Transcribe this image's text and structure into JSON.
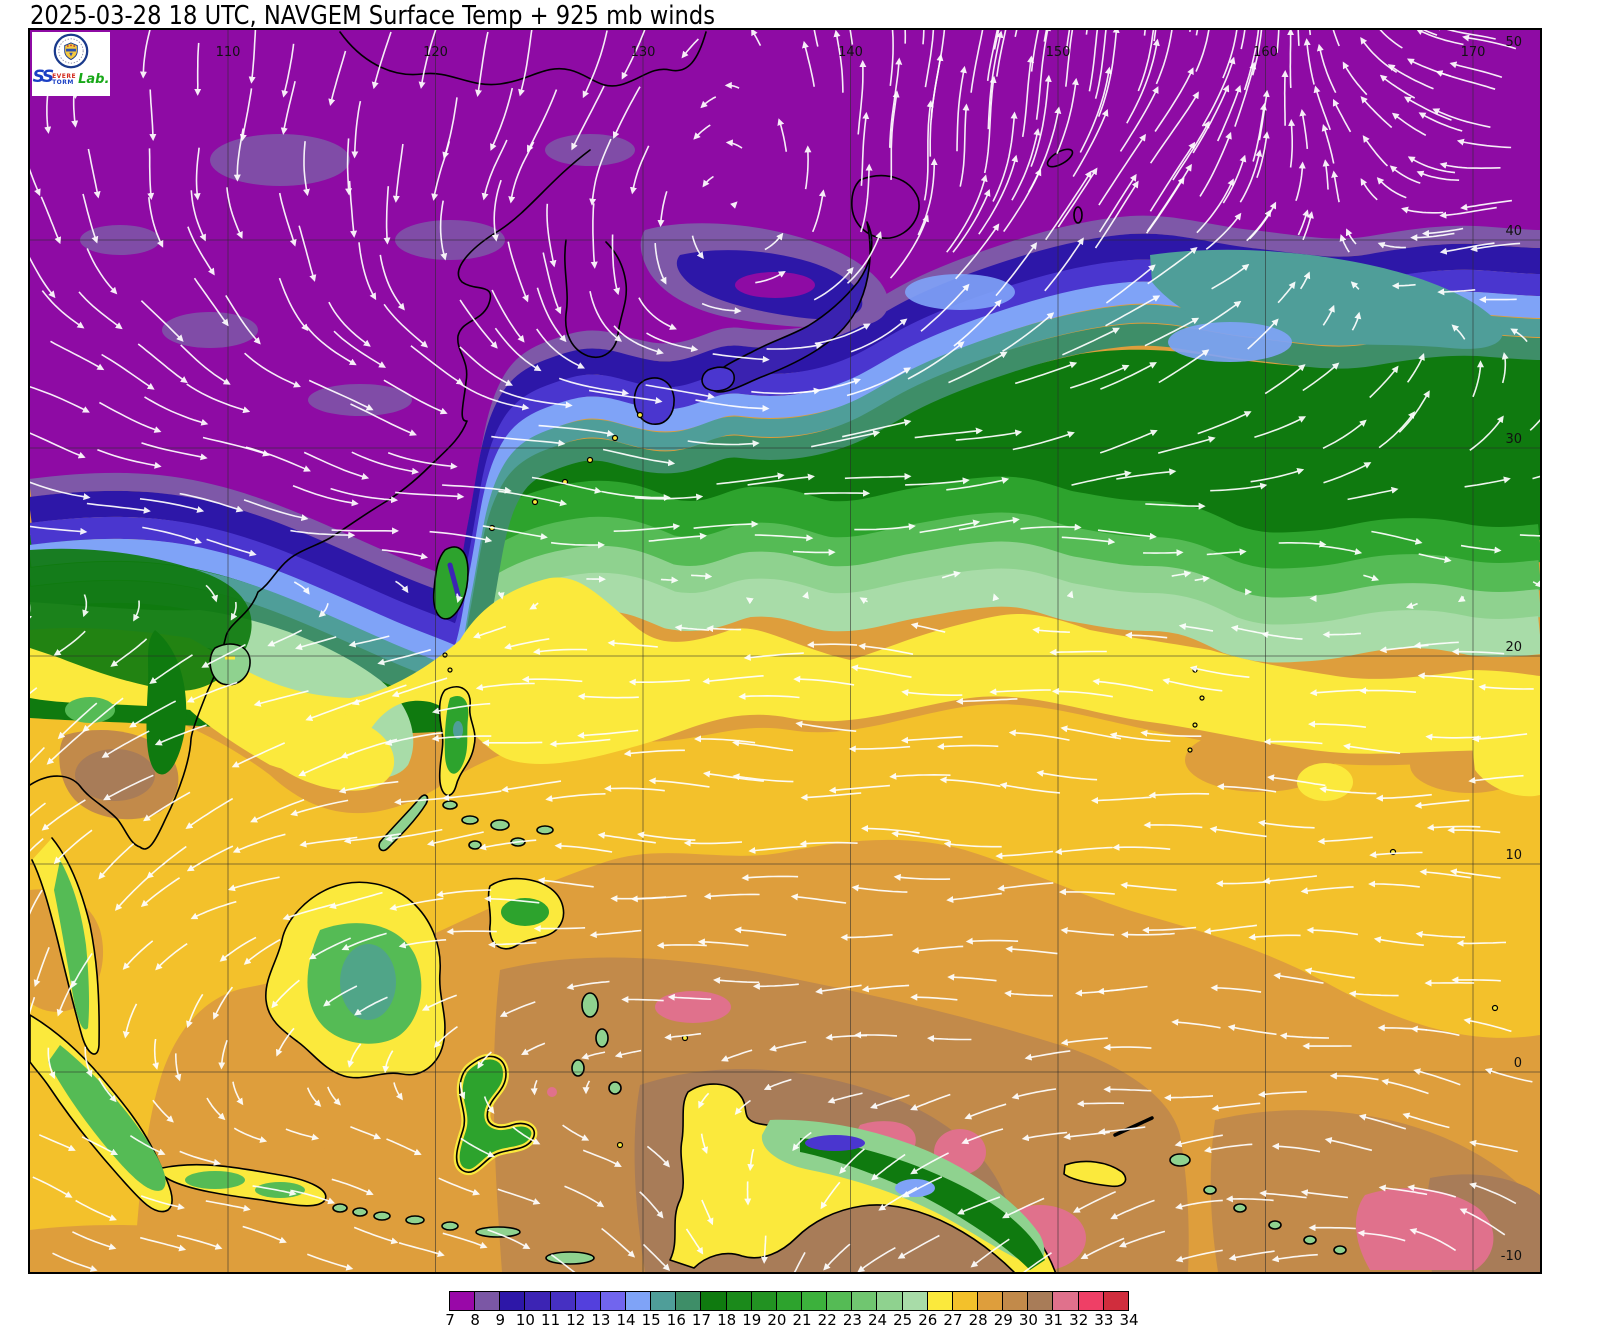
{
  "title": "2025-03-28 18 UTC, NAVGEM Surface Temp + 925 mb winds",
  "logo": {
    "s1": "S",
    "s2": "S",
    "top": "EVERE",
    "bottom": "TORM",
    "lab": "Lab."
  },
  "map": {
    "lon_labels": [
      "110",
      "120",
      "130",
      "140",
      "150",
      "160",
      "170"
    ],
    "lon_values": [
      110,
      120,
      130,
      140,
      150,
      160,
      170
    ],
    "lat_labels": [
      "50",
      "40",
      "30",
      "20",
      "10",
      "0",
      "-10"
    ],
    "lat_values": [
      50,
      40,
      30,
      20,
      10,
      0,
      -10
    ]
  },
  "colorbar": {
    "tick_labels": [
      "7",
      "8",
      "9",
      "10",
      "11",
      "12",
      "13",
      "14",
      "15",
      "16",
      "17",
      "18",
      "19",
      "20",
      "21",
      "22",
      "23",
      "24",
      "25",
      "26",
      "27",
      "28",
      "29",
      "30",
      "31",
      "32",
      "33",
      "34"
    ],
    "colors": [
      "#9908A8",
      "#7B57A5",
      "#2D17A8",
      "#3C24B4",
      "#4630C2",
      "#5340DD",
      "#7165EE",
      "#7FA3F7",
      "#4F9E99",
      "#3E8E68",
      "#0F7A0F",
      "#1B8A1B",
      "#229222",
      "#2DA32D",
      "#3CB13C",
      "#55BB55",
      "#70C670",
      "#8FD28F",
      "#A8DCA8",
      "#FBE93C",
      "#F3C12B",
      "#DE9E3C",
      "#C28A4A",
      "#A87C58",
      "#E0718C",
      "#EF3F66",
      "#D02D3D"
    ]
  },
  "wind": {
    "lats": [
      50,
      44,
      38,
      32,
      26,
      20,
      14,
      8,
      2,
      -4,
      -10
    ],
    "lons": [
      100,
      114,
      128,
      142,
      156,
      170
    ],
    "angles_deg": [
      [
        100,
        100,
        105,
        -90,
        -75,
        -165
      ],
      [
        80,
        95,
        115,
        -88,
        -55,
        -175
      ],
      [
        50,
        65,
        75,
        -55,
        -35,
        165
      ],
      [
        20,
        25,
        10,
        -12,
        -25,
        -60
      ],
      [
        12,
        8,
        2,
        -5,
        2,
        8
      ],
      [
        140,
        162,
        178,
        184,
        186,
        178
      ],
      [
        138,
        162,
        181,
        182,
        184,
        180
      ],
      [
        118,
        168,
        183,
        180,
        178,
        182
      ],
      [
        95,
        125,
        172,
        178,
        182,
        190
      ],
      [
        22,
        12,
        28,
        150,
        172,
        198
      ],
      [
        28,
        16,
        34,
        142,
        155,
        212
      ]
    ],
    "speed": [
      [
        0.8,
        0.9,
        1.2,
        1.5,
        1.3,
        0.9
      ],
      [
        0.8,
        0.9,
        1.2,
        1.5,
        1.2,
        0.9
      ],
      [
        0.9,
        1.0,
        1.1,
        1.2,
        1.0,
        0.8
      ],
      [
        1.1,
        1.2,
        1.3,
        1.2,
        1.0,
        0.9
      ],
      [
        1.0,
        1.1,
        1.1,
        1.0,
        1.0,
        0.9
      ],
      [
        0.8,
        0.9,
        1.0,
        1.0,
        1.0,
        0.9
      ],
      [
        0.9,
        1.0,
        1.0,
        1.0,
        1.0,
        0.9
      ],
      [
        0.8,
        0.9,
        0.9,
        0.9,
        0.9,
        0.8
      ],
      [
        0.6,
        0.6,
        0.6,
        0.7,
        0.8,
        0.8
      ],
      [
        0.7,
        0.7,
        0.7,
        0.7,
        0.8,
        0.8
      ],
      [
        0.8,
        0.8,
        0.8,
        0.8,
        0.8,
        0.9
      ]
    ]
  }
}
